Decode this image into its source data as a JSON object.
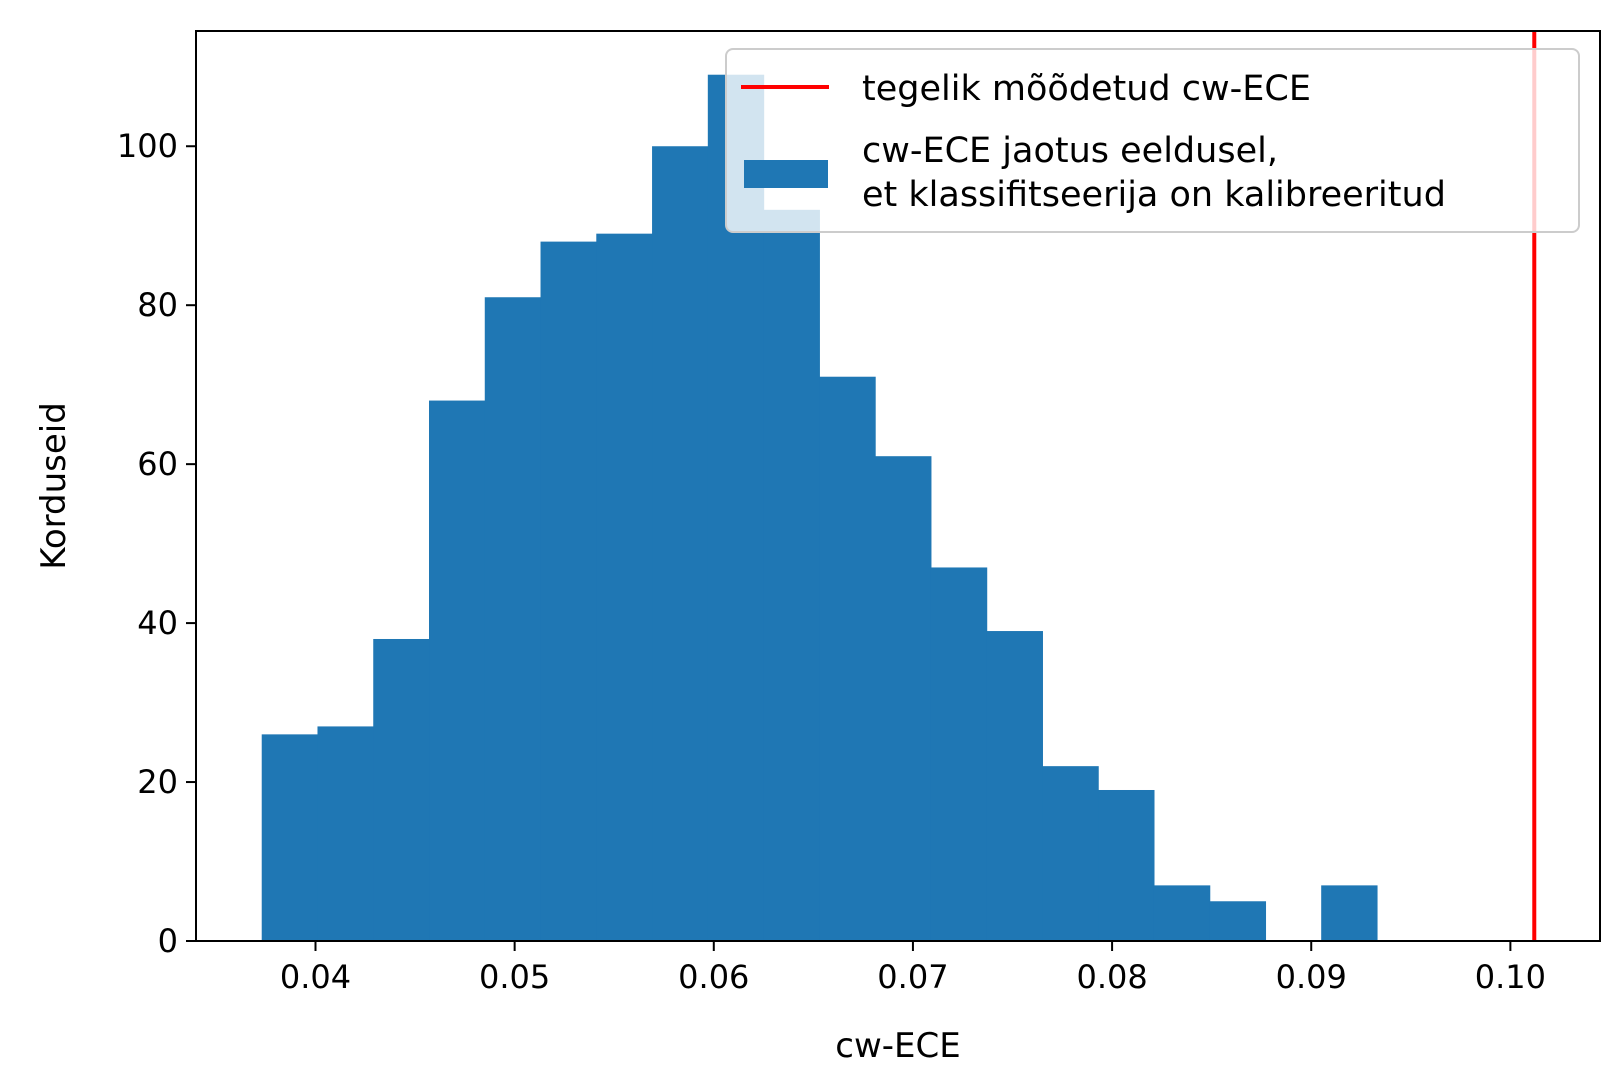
{
  "chart_data": {
    "type": "bar",
    "subtype": "histogram",
    "xlabel": "cw-ECE",
    "ylabel": "Korduseid",
    "xlim": [
      0.034,
      0.1045
    ],
    "ylim": [
      0,
      114.5
    ],
    "xticks": [
      "0.04",
      "0.05",
      "0.06",
      "0.07",
      "0.08",
      "0.09",
      "0.10"
    ],
    "xtick_values": [
      0.04,
      0.05,
      0.06,
      0.07,
      0.08,
      0.09,
      0.1
    ],
    "yticks": [
      "0",
      "20",
      "40",
      "60",
      "80",
      "100"
    ],
    "ytick_values": [
      0,
      20,
      40,
      60,
      80,
      100
    ],
    "bin_edges": [
      0.0373,
      0.0401,
      0.0429,
      0.0457,
      0.0485,
      0.0513,
      0.0541,
      0.0569,
      0.0597,
      0.0625,
      0.0653,
      0.0681,
      0.0709,
      0.0737,
      0.0765,
      0.0793,
      0.0821,
      0.0849,
      0.0877,
      0.0905,
      0.0933
    ],
    "counts": [
      26,
      27,
      38,
      68,
      81,
      88,
      89,
      100,
      109,
      92,
      71,
      61,
      47,
      39,
      22,
      19,
      7,
      5,
      0,
      7
    ],
    "bar_color": "#1f77b4",
    "vline": {
      "x": 0.1012,
      "color": "#ff0000"
    },
    "grid": false,
    "legend": {
      "placement": "top-right",
      "entries": [
        {
          "marker": "line",
          "color": "#ff0000",
          "lines": [
            "tegelik mõõdetud cw-ECE"
          ]
        },
        {
          "marker": "patch",
          "color": "#1f77b4",
          "lines": [
            "cw-ECE jaotus eeldusel,",
            "et klassifitseerija on kalibreeritud"
          ]
        }
      ]
    }
  }
}
